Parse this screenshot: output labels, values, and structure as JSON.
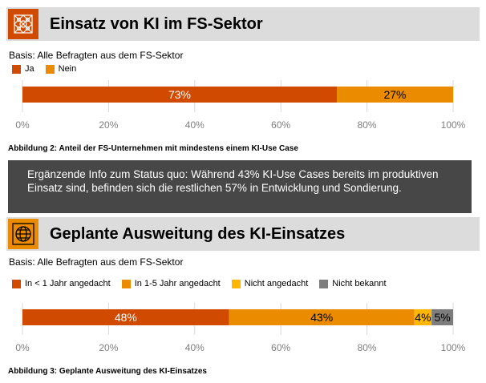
{
  "colors": {
    "dark_orange": "#d04a02",
    "orange": "#eb8c00",
    "yellow": "#ffb600",
    "grey": "#7d7d7d",
    "header_bg": "#dcdcdc",
    "info_bg": "#474747"
  },
  "section1": {
    "icon": "network-pattern-icon",
    "title": "Einsatz von KI im FS-Sektor",
    "basis": "Basis: Alle Befragten aus dem FS-Sektor",
    "caption": "Abbildung 2: Anteil der FS-Unternehmen mit mindestens einem KI-Use Case"
  },
  "info": {
    "text": "Ergänzende Info zum Status quo: Während 43% KI-Use Cases bereits im produktiven Einsatz sind, befinden sich die restlichen 57% in Entwicklung und Sondierung."
  },
  "section2": {
    "icon": "globe-icon",
    "title": "Geplante Ausweitung des KI-Einsatzes",
    "basis": "Basis: Alle Befragten aus dem FS-Sektor",
    "caption": "Abbildung 3: Geplante Ausweitung des KI-Einsatzes"
  },
  "chart_data": [
    {
      "type": "bar",
      "orientation": "horizontal-stacked",
      "series": [
        {
          "name": "Ja",
          "values": [
            73
          ],
          "label": "73%",
          "color": "#d04a02"
        },
        {
          "name": "Nein",
          "values": [
            27
          ],
          "label": "27%",
          "color": "#eb8c00"
        }
      ],
      "xlim": [
        0,
        100
      ],
      "ticks": [
        "0%",
        "20%",
        "40%",
        "60%",
        "80%",
        "100%"
      ],
      "legend": "top-left",
      "title": "Anteil der FS-Unternehmen mit mindestens einem KI-Use Case"
    },
    {
      "type": "bar",
      "orientation": "horizontal-stacked",
      "series": [
        {
          "name": "In < 1 Jahr angedacht",
          "values": [
            48
          ],
          "label": "48%",
          "color": "#d04a02"
        },
        {
          "name": "In 1-5 Jahr angedacht",
          "values": [
            43
          ],
          "label": "43%",
          "color": "#eb8c00"
        },
        {
          "name": "Nicht angedacht",
          "values": [
            4
          ],
          "label": "4%",
          "color": "#ffb600"
        },
        {
          "name": "Nicht bekannt",
          "values": [
            5
          ],
          "label": "5%",
          "color": "#7d7d7d"
        }
      ],
      "xlim": [
        0,
        100
      ],
      "ticks": [
        "0%",
        "20%",
        "40%",
        "60%",
        "80%",
        "100%"
      ],
      "legend": "top-left",
      "title": "Geplante Ausweitung des KI-Einsatzes"
    }
  ]
}
